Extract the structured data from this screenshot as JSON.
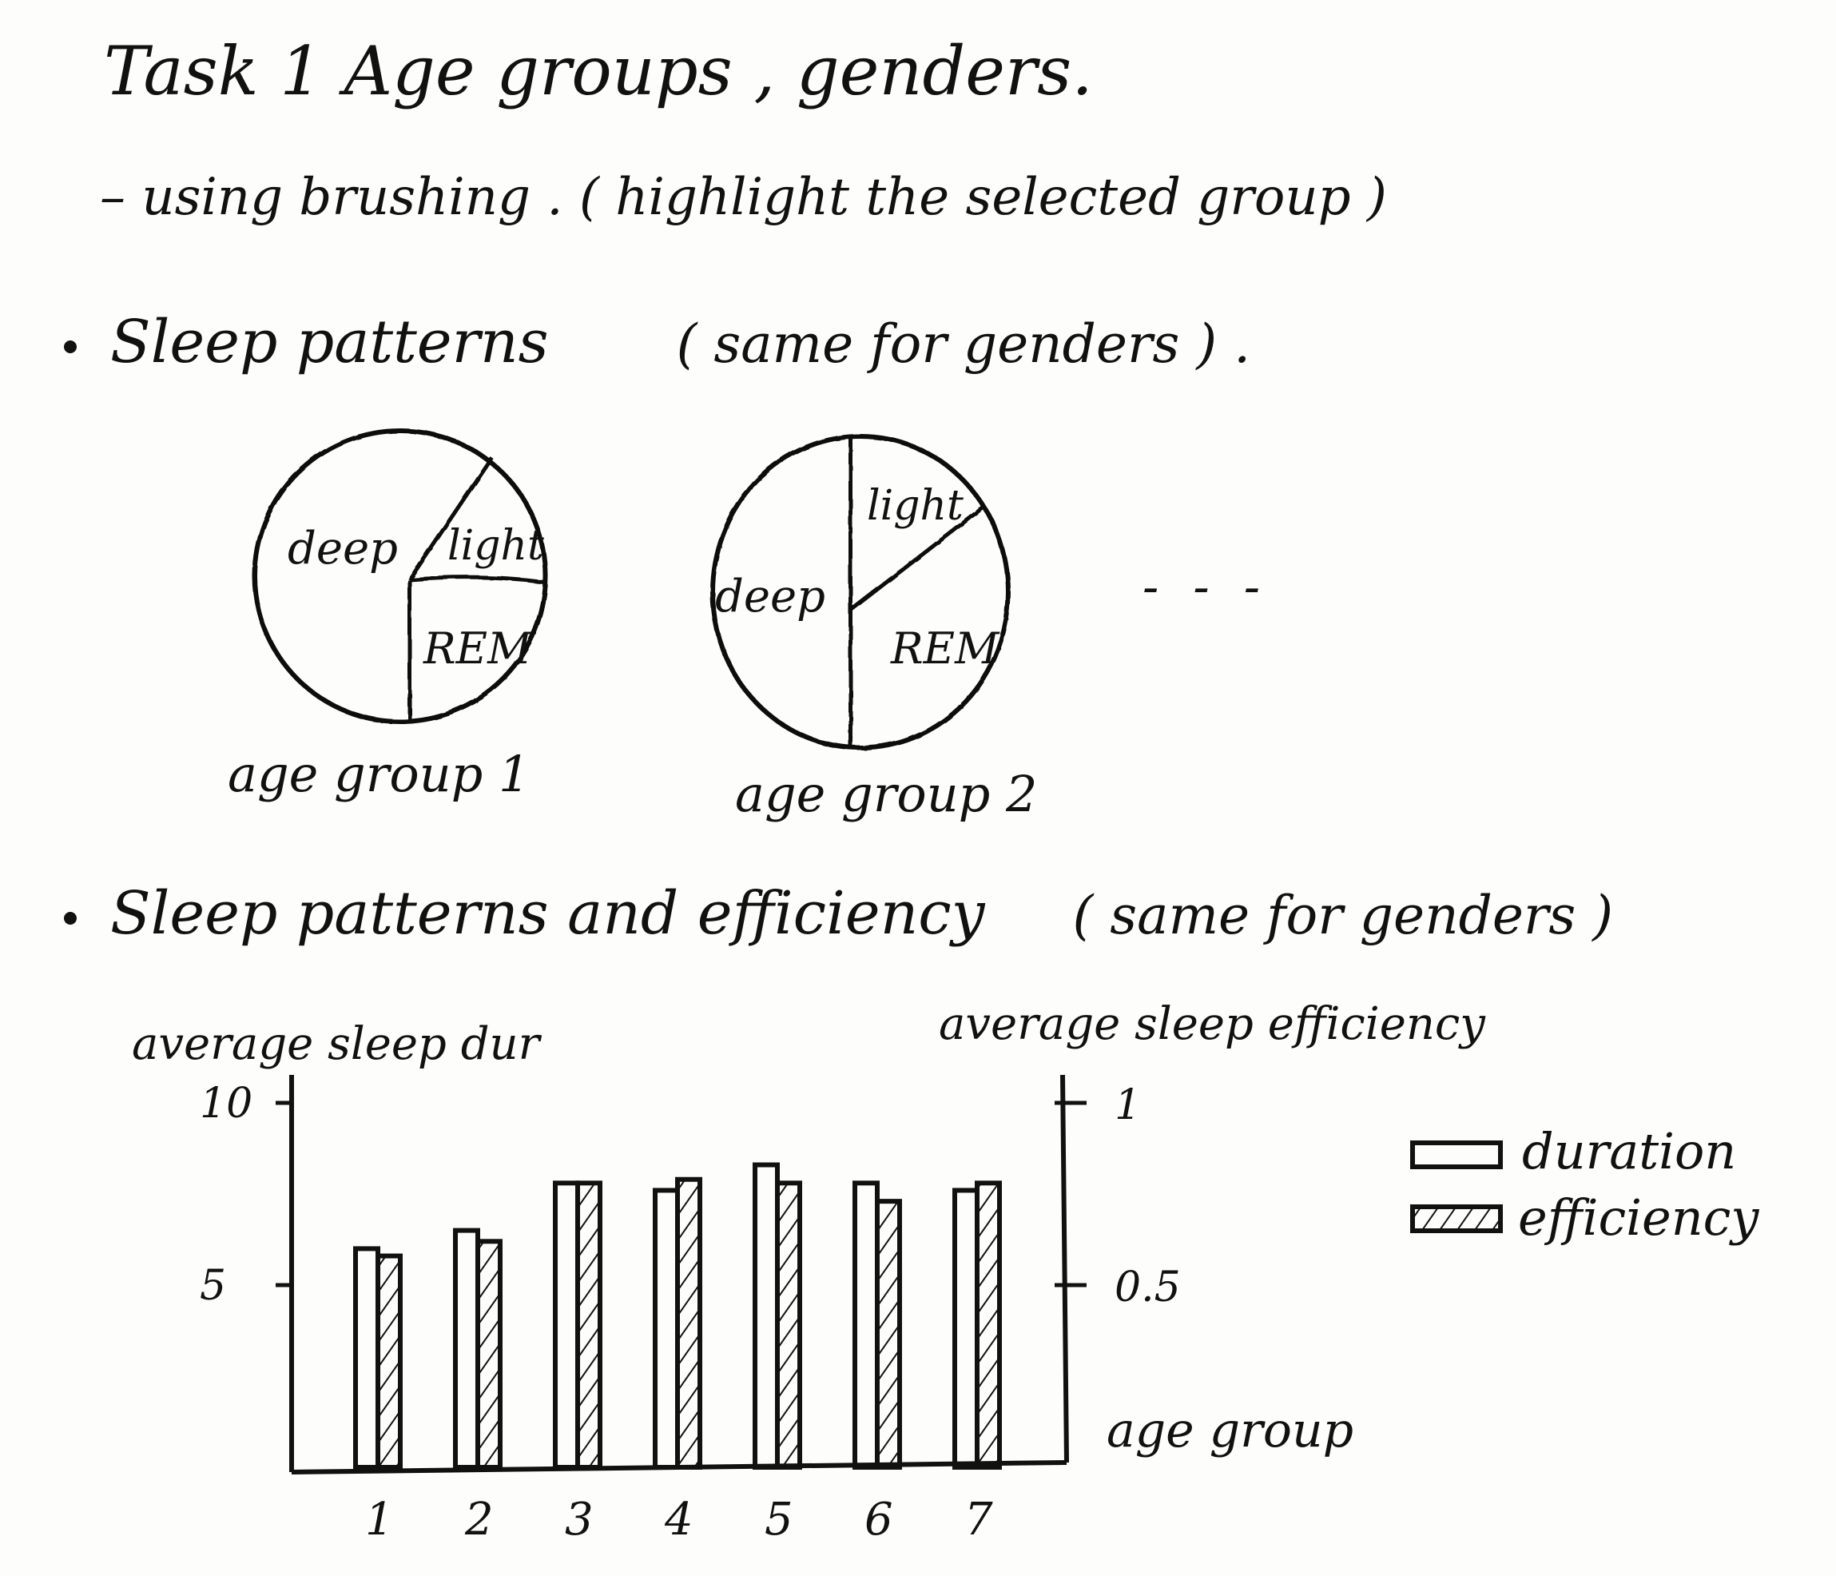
{
  "title": "Task 1   Age groups , genders.",
  "brushing_note": "– using brushing . ( highlight the selected group )",
  "section_sleep_patterns": {
    "label": "Sleep patterns",
    "note": "( same for genders ) ."
  },
  "pies": [
    {
      "caption": "age group 1",
      "slices": [
        {
          "label": "deep"
        },
        {
          "label": "light"
        },
        {
          "label": "REM"
        }
      ]
    },
    {
      "caption": "age group 2",
      "slices": [
        {
          "label": "deep"
        },
        {
          "label": "light"
        },
        {
          "label": "REM"
        }
      ]
    }
  ],
  "pies_ellipsis": "- - -",
  "section_patterns_efficiency": {
    "label": "Sleep patterns and efficiency",
    "note": "( same for genders )"
  },
  "chart_data": {
    "type": "bar",
    "categories": [
      "1",
      "2",
      "3",
      "4",
      "5",
      "6",
      "7"
    ],
    "series": [
      {
        "name": "duration",
        "axis": "left",
        "values": [
          6.0,
          6.5,
          7.8,
          7.6,
          8.3,
          7.8,
          7.6
        ],
        "fill": "none"
      },
      {
        "name": "efficiency",
        "axis": "right",
        "values": [
          0.58,
          0.62,
          0.78,
          0.79,
          0.78,
          0.73,
          0.78
        ],
        "fill": "hatched"
      }
    ],
    "ylabel_left": "average sleep dur",
    "ylabel_right": "average sleep efficiency",
    "xlabel": "age group",
    "left_ticks": [
      "10",
      "5"
    ],
    "right_ticks": [
      "1",
      "0.5"
    ],
    "ylim_left": [
      0,
      10
    ],
    "ylim_right": [
      0,
      1
    ],
    "legend": [
      {
        "label": "duration",
        "style": "empty"
      },
      {
        "label": "efficiency",
        "style": "hatched"
      }
    ],
    "legend_position": "right"
  }
}
